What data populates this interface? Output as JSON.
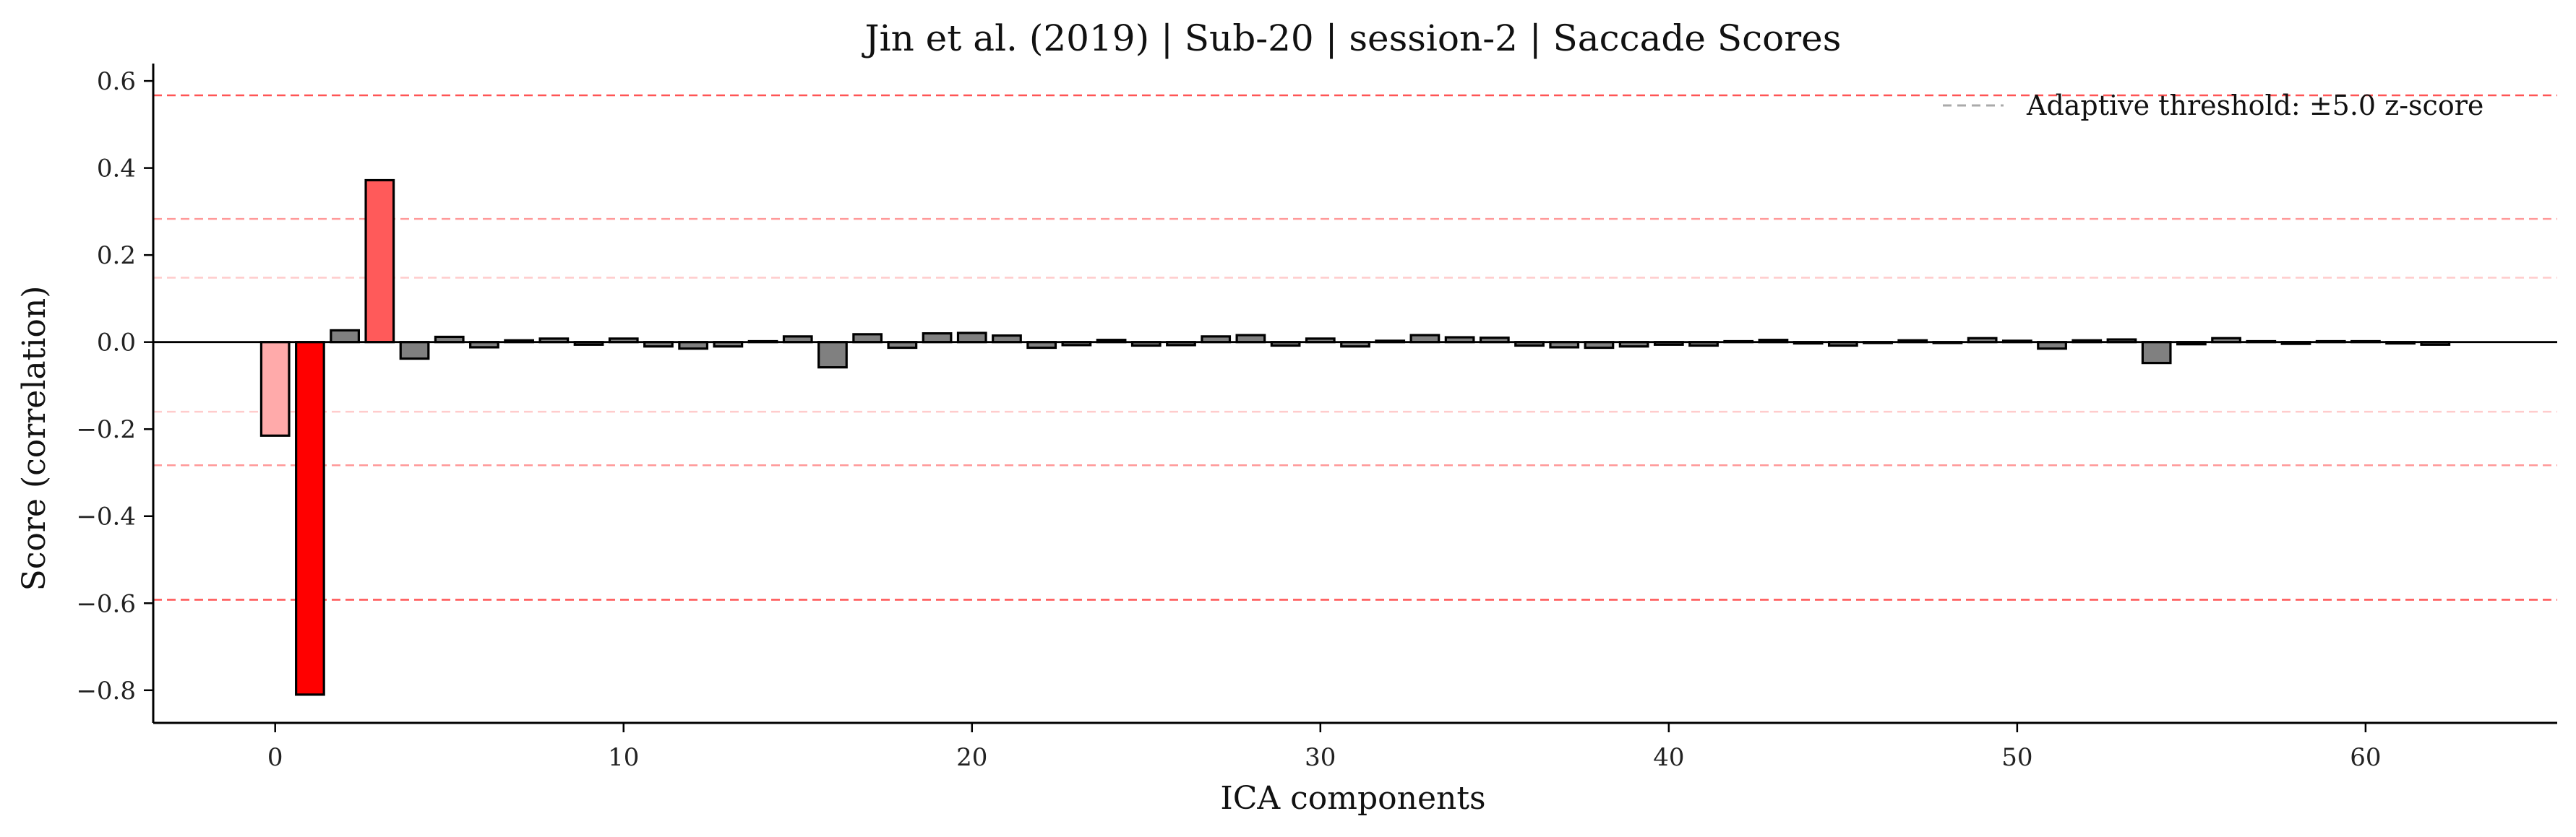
{
  "chart_data": {
    "type": "bar",
    "title": "Jin et al. (2019) | Sub-20 | session-2 | Saccade Scores",
    "xlabel": "ICA components",
    "ylabel": "Score (correlation)",
    "xlim": [
      -3.5,
      65.5
    ],
    "ylim": [
      -0.875,
      0.64
    ],
    "x_ticks": [
      0,
      10,
      20,
      30,
      40,
      50,
      60
    ],
    "x_tick_labels": [
      "0",
      "10",
      "20",
      "30",
      "40",
      "50",
      "60"
    ],
    "y_ticks": [
      0.6,
      0.4,
      0.2,
      0.0,
      -0.2,
      -0.4,
      -0.6,
      -0.8
    ],
    "y_tick_labels": [
      "0.6",
      "0.4",
      "0.2",
      "0.0",
      "−0.2",
      "−0.4",
      "−0.6",
      "−0.8"
    ],
    "x": [
      0,
      1,
      2,
      3,
      4,
      5,
      6,
      7,
      8,
      9,
      10,
      11,
      12,
      13,
      14,
      15,
      16,
      17,
      18,
      19,
      20,
      21,
      22,
      23,
      24,
      25,
      26,
      27,
      28,
      29,
      30,
      31,
      32,
      33,
      34,
      35,
      36,
      37,
      38,
      39,
      40,
      41,
      42,
      43,
      44,
      45,
      46,
      47,
      48,
      49,
      50,
      51,
      52,
      53,
      54,
      55,
      56,
      57,
      58,
      59,
      60,
      61,
      62
    ],
    "values": [
      -0.215,
      -0.81,
      0.027,
      0.372,
      -0.038,
      0.012,
      -0.012,
      0.004,
      0.008,
      -0.006,
      0.008,
      -0.01,
      -0.015,
      -0.01,
      0.002,
      0.013,
      -0.058,
      0.018,
      -0.013,
      0.02,
      0.021,
      0.015,
      -0.013,
      -0.007,
      0.005,
      -0.008,
      -0.007,
      0.013,
      0.016,
      -0.008,
      0.008,
      -0.01,
      0.003,
      0.016,
      0.011,
      0.01,
      -0.008,
      -0.012,
      -0.013,
      -0.01,
      -0.006,
      -0.008,
      0.002,
      0.005,
      -0.003,
      -0.008,
      -0.002,
      0.004,
      -0.002,
      0.009,
      0.003,
      -0.015,
      0.004,
      0.006,
      -0.048,
      -0.005,
      0.009,
      0.002,
      -0.004,
      0.002,
      0.002,
      -0.003,
      -0.006
    ],
    "bar_colors": {
      "default": "#808080",
      "0": "#ffaaaa",
      "1": "#ff0000",
      "3": "#ff5a5a"
    },
    "threshold_lines": [
      {
        "value": 0.567,
        "color": "#ff5555"
      },
      {
        "value": 0.283,
        "color": "#ff9999"
      },
      {
        "value": 0.148,
        "color": "#ffcccc"
      },
      {
        "value": -0.16,
        "color": "#ffcccc"
      },
      {
        "value": -0.283,
        "color": "#ff9999"
      },
      {
        "value": -0.592,
        "color": "#ff5555"
      }
    ],
    "legend": {
      "placement": "top-right",
      "entries": [
        {
          "label": "Adaptive threshold: ±5.0 z-score",
          "style": "dashed",
          "color": "#aaaaaa"
        }
      ]
    },
    "grid": false
  }
}
